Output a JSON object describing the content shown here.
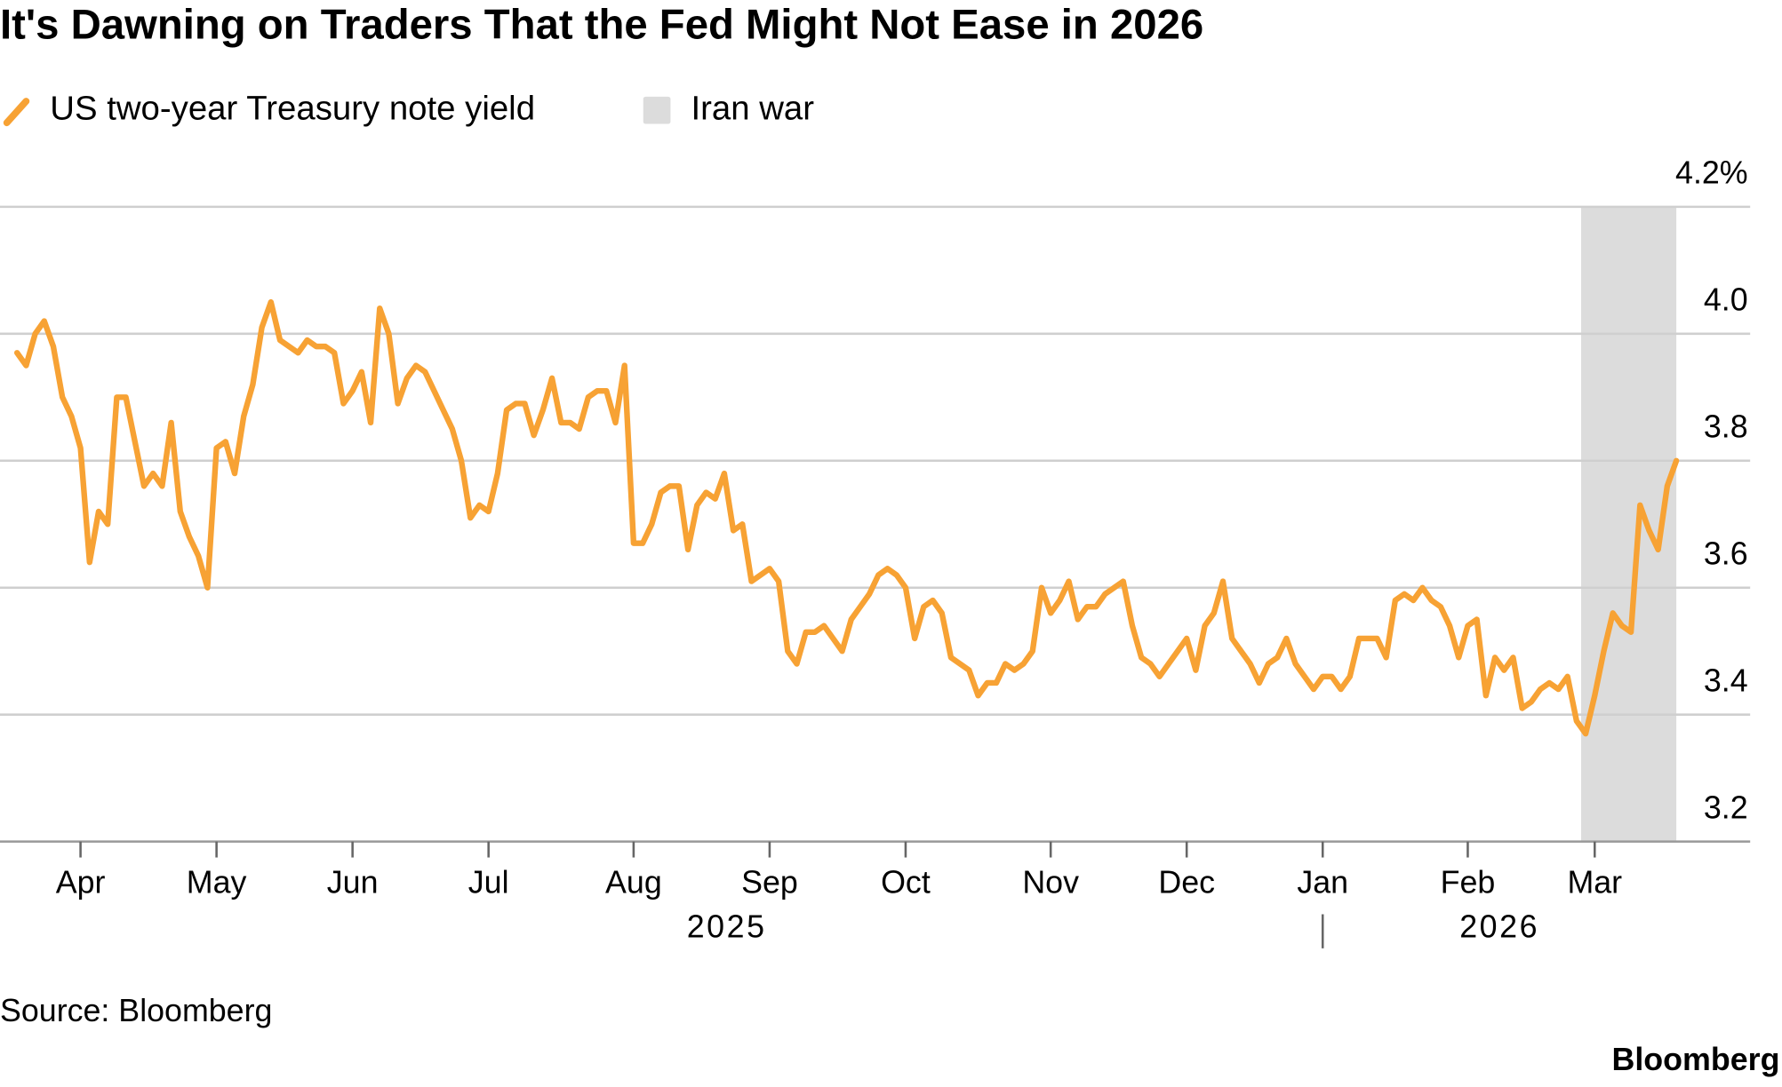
{
  "chart_data": {
    "type": "line",
    "title": "It's Dawning on Traders That the Fed Might Not Ease in 2026",
    "categories": [
      null,
      null,
      null,
      null,
      null,
      null,
      null,
      "Apr",
      null,
      null,
      null,
      null,
      null,
      null,
      null,
      null,
      null,
      null,
      null,
      null,
      null,
      null,
      "May",
      null,
      null,
      null,
      null,
      null,
      null,
      null,
      null,
      null,
      null,
      null,
      null,
      null,
      null,
      "Jun",
      null,
      null,
      null,
      null,
      null,
      null,
      null,
      null,
      null,
      null,
      null,
      null,
      null,
      null,
      "Jul",
      null,
      null,
      null,
      null,
      null,
      null,
      null,
      null,
      null,
      null,
      null,
      null,
      null,
      null,
      null,
      "Aug",
      null,
      null,
      null,
      null,
      null,
      null,
      null,
      null,
      null,
      null,
      null,
      null,
      null,
      null,
      "Sep",
      null,
      null,
      null,
      null,
      null,
      null,
      null,
      null,
      null,
      null,
      null,
      null,
      null,
      null,
      "Oct",
      null,
      null,
      null,
      null,
      null,
      null,
      null,
      null,
      null,
      null,
      null,
      null,
      null,
      null,
      null,
      "Nov",
      null,
      null,
      null,
      null,
      null,
      null,
      null,
      null,
      null,
      null,
      null,
      null,
      null,
      null,
      "Dec",
      null,
      null,
      null,
      null,
      null,
      null,
      null,
      null,
      null,
      null,
      null,
      null,
      null,
      null,
      "Jan",
      null,
      null,
      null,
      null,
      null,
      null,
      null,
      null,
      null,
      null,
      null,
      null,
      null,
      null,
      null,
      "Feb",
      null,
      null,
      null,
      null,
      null,
      null,
      null,
      null,
      null,
      null,
      null,
      null,
      null,
      "Mar",
      null,
      null,
      null,
      null,
      null,
      null,
      null,
      null,
      null
    ],
    "years": [
      "2025",
      "2026"
    ],
    "series": [
      {
        "name": "US two-year Treasury note yield",
        "color": "#f7a234",
        "values": [
          3.97,
          3.95,
          4.0,
          4.02,
          3.98,
          3.9,
          3.87,
          3.82,
          3.64,
          3.72,
          3.7,
          3.9,
          3.9,
          3.83,
          3.76,
          3.78,
          3.76,
          3.86,
          3.72,
          3.68,
          3.65,
          3.6,
          3.82,
          3.83,
          3.78,
          3.87,
          3.92,
          4.01,
          4.05,
          3.99,
          3.98,
          3.97,
          3.99,
          3.98,
          3.98,
          3.97,
          3.89,
          3.91,
          3.94,
          3.86,
          4.04,
          4.0,
          3.89,
          3.93,
          3.95,
          3.94,
          3.91,
          3.88,
          3.85,
          3.8,
          3.71,
          3.73,
          3.72,
          3.78,
          3.88,
          3.89,
          3.89,
          3.84,
          3.88,
          3.93,
          3.86,
          3.86,
          3.85,
          3.9,
          3.91,
          3.91,
          3.86,
          3.95,
          3.67,
          3.67,
          3.7,
          3.75,
          3.76,
          3.76,
          3.66,
          3.73,
          3.75,
          3.74,
          3.78,
          3.69,
          3.7,
          3.61,
          3.62,
          3.63,
          3.61,
          3.5,
          3.48,
          3.53,
          3.53,
          3.54,
          3.52,
          3.5,
          3.55,
          3.57,
          3.59,
          3.62,
          3.63,
          3.62,
          3.6,
          3.52,
          3.57,
          3.58,
          3.56,
          3.49,
          3.48,
          3.47,
          3.43,
          3.45,
          3.45,
          3.48,
          3.47,
          3.48,
          3.5,
          3.6,
          3.56,
          3.58,
          3.61,
          3.55,
          3.57,
          3.57,
          3.59,
          3.6,
          3.61,
          3.54,
          3.49,
          3.48,
          3.46,
          3.48,
          3.5,
          3.52,
          3.47,
          3.54,
          3.56,
          3.61,
          3.52,
          3.5,
          3.48,
          3.45,
          3.48,
          3.49,
          3.52,
          3.48,
          3.46,
          3.44,
          3.46,
          3.46,
          3.44,
          3.46,
          3.52,
          3.52,
          3.52,
          3.49,
          3.58,
          3.59,
          3.58,
          3.6,
          3.58,
          3.57,
          3.54,
          3.49,
          3.54,
          3.55,
          3.43,
          3.49,
          3.47,
          3.49,
          3.41,
          3.42,
          3.44,
          3.45,
          3.44,
          3.46,
          3.39,
          3.37,
          3.43,
          3.5,
          3.56,
          3.54,
          3.53,
          3.73,
          3.69,
          3.66,
          3.76,
          3.8
        ]
      }
    ],
    "highlight": {
      "name": "Iran war",
      "color": "#dcdcdc",
      "from_index": 173,
      "to_index": 183
    },
    "ylim": [
      3.2,
      4.2
    ],
    "yticks": [
      {
        "value": 4.2,
        "label": "4.2%"
      },
      {
        "value": 4,
        "label": "4.0"
      },
      3.8,
      3.6,
      3.4,
      3.2
    ],
    "grid": true,
    "source": "Source: Bloomberg",
    "brand": "Bloomberg"
  }
}
